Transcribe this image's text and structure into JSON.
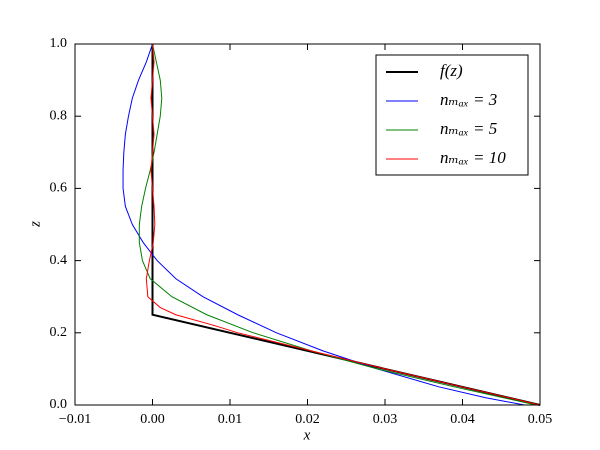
{
  "chart_data": {
    "type": "line",
    "x_label": "x",
    "y_label": "z",
    "xlim": [
      -0.01,
      0.05
    ],
    "ylim": [
      0,
      1
    ],
    "xticks": [
      {
        "value": -0.01,
        "label": "−0.01"
      },
      {
        "value": 0,
        "label": "0.00"
      },
      0.01,
      0.02,
      0.03,
      0.04,
      0.05
    ],
    "yticks": [
      {
        "value": 0,
        "label": "0.0"
      },
      0.2,
      0.4,
      0.6,
      0.8,
      {
        "value": 1,
        "label": "1.0"
      }
    ],
    "legend": "upper right",
    "series": [
      {
        "name": "f(z)",
        "color": "#000000",
        "x": [
          0,
          0,
          0.05
        ],
        "values": [
          1,
          0.25,
          0
        ]
      },
      {
        "name": "nₘₐₓ = 3",
        "color": "#0000ff",
        "x": [
          0,
          -0.0008,
          -0.0018,
          -0.0026,
          -0.0031,
          -0.0035,
          -0.0037,
          -0.0038,
          -0.0038,
          -0.0035,
          -0.0026,
          -0.0012,
          0.0006,
          0.003,
          0.0065,
          0.011,
          0.016,
          0.022,
          0.029,
          0.037,
          0.043,
          0.048
        ],
        "values": [
          1,
          0.95,
          0.9,
          0.85,
          0.8,
          0.75,
          0.7,
          0.65,
          0.6,
          0.55,
          0.5,
          0.45,
          0.4,
          0.35,
          0.3,
          0.25,
          0.2,
          0.15,
          0.1,
          0.05,
          0.02,
          0
        ]
      },
      {
        "name": "nₘₐₓ = 5",
        "color": "#008000",
        "x": [
          0,
          0.0005,
          0.001,
          0.0012,
          0.001,
          0.0006,
          0.0002,
          -0.0003,
          -0.0009,
          -0.0014,
          -0.0017,
          -0.0017,
          -0.0013,
          -0.0003,
          0.0025,
          0.007,
          0.013,
          0.0205,
          0.029,
          0.039,
          0.0495
        ],
        "values": [
          1,
          0.95,
          0.9,
          0.85,
          0.8,
          0.75,
          0.7,
          0.65,
          0.6,
          0.55,
          0.5,
          0.45,
          0.4,
          0.35,
          0.3,
          0.25,
          0.2,
          0.15,
          0.1,
          0.05,
          0
        ]
      },
      {
        "name": "nₘₐₓ = 10",
        "color": "#ff0000",
        "x": [
          0,
          0.0002,
          0,
          -0.0002,
          0,
          0.0002,
          0,
          -0.0002,
          0,
          0.0002,
          0.0003,
          0.0001,
          -0.0004,
          -0.0008,
          -0.0006,
          0.001,
          0.003,
          0.008,
          0.011,
          0.0205,
          0.03,
          0.04,
          0.05
        ],
        "values": [
          1,
          0.95,
          0.9,
          0.85,
          0.8,
          0.75,
          0.7,
          0.65,
          0.6,
          0.55,
          0.5,
          0.45,
          0.4,
          0.35,
          0.3,
          0.27,
          0.25,
          0.22,
          0.2,
          0.15,
          0.1,
          0.05,
          0
        ]
      }
    ]
  }
}
